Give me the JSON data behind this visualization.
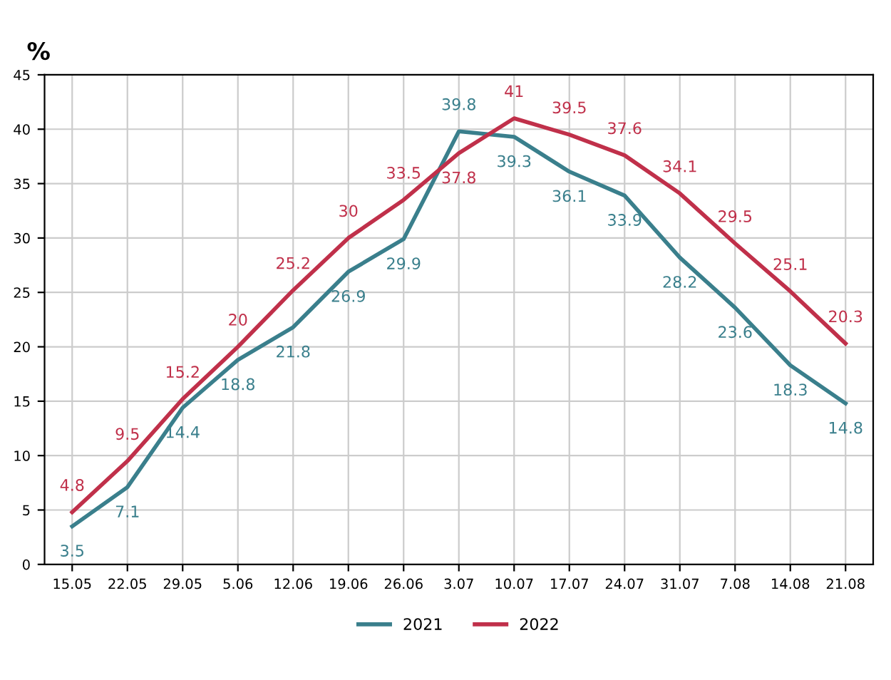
{
  "chart_data": {
    "type": "line",
    "ylabel": "%",
    "categories": [
      "15.05",
      "22.05",
      "29.05",
      "5.06",
      "12.06",
      "19.06",
      "26.06",
      "3.07",
      "10.07",
      "17.07",
      "24.07",
      "31.07",
      "7.08",
      "14.08",
      "21.08"
    ],
    "series": [
      {
        "name": "2021",
        "color": "#3a7f8c",
        "values": [
          3.5,
          7.1,
          14.4,
          18.8,
          21.8,
          26.9,
          29.9,
          39.8,
          39.3,
          36.1,
          33.9,
          28.2,
          23.6,
          18.3,
          14.8
        ]
      },
      {
        "name": "2022",
        "color": "#c0304a",
        "values": [
          4.8,
          9.5,
          15.2,
          20,
          25.2,
          30,
          33.5,
          37.8,
          41,
          39.5,
          37.6,
          34.1,
          29.5,
          25.1,
          20.3
        ]
      }
    ],
    "ylim": [
      0,
      45
    ],
    "yticks": [
      0,
      5,
      10,
      15,
      20,
      25,
      30,
      35,
      40,
      45
    ],
    "grid": true,
    "legend": "bottom",
    "data_labels": true,
    "marker": "none",
    "line_style": "solid"
  }
}
